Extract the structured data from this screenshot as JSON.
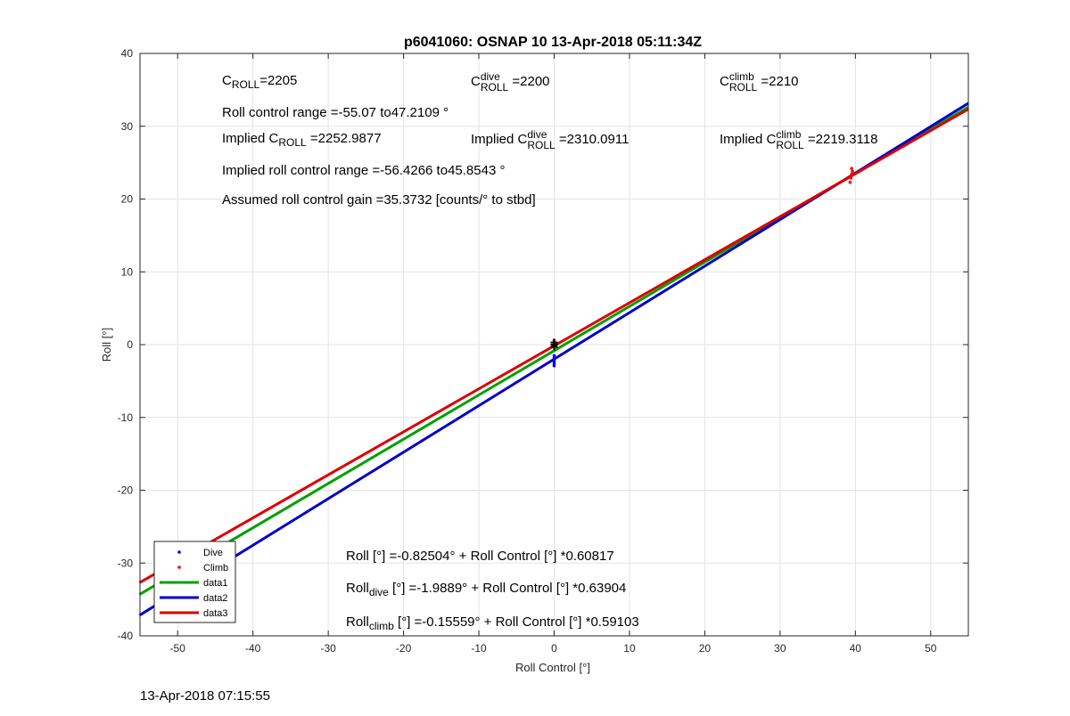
{
  "chart_data": {
    "type": "scatter",
    "title": "p6041060: OSNAP 10 13-Apr-2018 05:11:34Z",
    "xlabel": "Roll Control [°]",
    "ylabel": "Roll [°]",
    "xlim": [
      -55,
      55
    ],
    "ylim": [
      -40,
      40
    ],
    "xticks": [
      -50,
      -40,
      -30,
      -20,
      -10,
      0,
      10,
      20,
      30,
      40,
      50
    ],
    "yticks": [
      -40,
      -30,
      -20,
      -10,
      0,
      10,
      20,
      30,
      40
    ],
    "grid": true,
    "legend_position": "bottom-left",
    "series": [
      {
        "name": "Dive",
        "kind": "points",
        "color": "#0000ff",
        "x": [
          0,
          0,
          0,
          0,
          0,
          0
        ],
        "y": [
          -1.5,
          -1.8,
          -2.0,
          -2.3,
          -2.6,
          -2.9
        ]
      },
      {
        "name": "Climb",
        "kind": "points",
        "color": "#ff0000",
        "x": [
          39.3,
          39.4,
          39.5,
          39.6,
          39.5,
          39.4,
          0,
          0
        ],
        "y": [
          22.3,
          22.9,
          23.4,
          23.8,
          24.2,
          23.1,
          0.3,
          0.6
        ]
      },
      {
        "name": "data1",
        "kind": "line",
        "color": "#00a000",
        "x": [
          -55.07,
          55
        ],
        "intercept": -0.82504,
        "slope": 0.60817
      },
      {
        "name": "data2",
        "kind": "line",
        "color": "#0000cc",
        "x": [
          -55.07,
          55
        ],
        "intercept": -1.9889,
        "slope": 0.63904
      },
      {
        "name": "data3",
        "kind": "line",
        "color": "#dd0000",
        "x": [
          -55.07,
          55
        ],
        "intercept": -0.15559,
        "slope": 0.59103
      }
    ],
    "black_points": {
      "x": [
        0,
        0,
        0
      ],
      "y": [
        0,
        0.3,
        -0.3
      ]
    }
  },
  "annotations": {
    "c_roll": {
      "C": "C",
      "sub": "ROLL",
      "value": "=2205"
    },
    "c_roll_dive": {
      "C": "C",
      "sup": "dive",
      "sub": "ROLL",
      "value": " =2200"
    },
    "c_roll_climb": {
      "C": "C",
      "sup": "climb",
      "sub": "ROLL",
      "value": " =2210"
    },
    "roll_range": "Roll control range =-55.07 to47.2109 °",
    "implied_c_roll": {
      "pre": "Implied C",
      "sub": "ROLL",
      "value": " =2252.9877"
    },
    "implied_c_roll_dive": {
      "pre": "Implied C",
      "sup": "dive",
      "sub": "ROLL",
      "value": " =2310.0911"
    },
    "implied_c_roll_climb": {
      "pre": "Implied C",
      "sup": "climb",
      "sub": "ROLL",
      "value": " =2219.3118"
    },
    "implied_range": "Implied roll control range =-56.4266 to45.8543 °",
    "gain": "Assumed roll control gain =35.3732 [counts/° to stbd]",
    "fit_all": "Roll [°] =-0.82504° + Roll Control [°] *0.60817",
    "fit_dive": {
      "pre": "Roll",
      "sub": "dive",
      "post": " [°] =-1.9889° + Roll Control [°] *0.63904"
    },
    "fit_climb": {
      "pre": "Roll",
      "sub": "climb",
      "post": " [°] =-0.15559° + Roll Control [°] *0.59103"
    }
  },
  "timestamp": "13-Apr-2018 07:15:55"
}
